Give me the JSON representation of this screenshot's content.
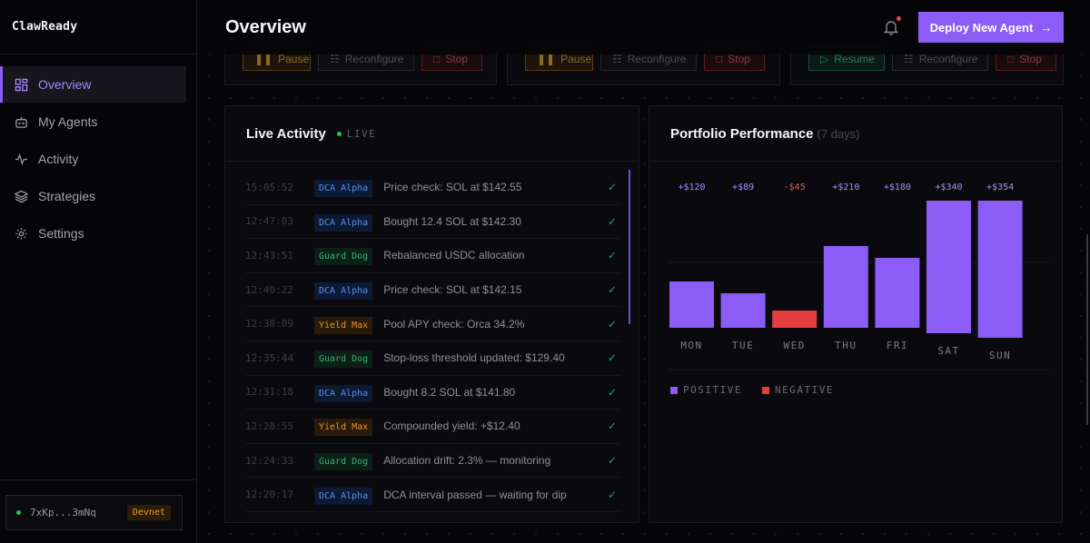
{
  "app": {
    "brand": "ClawReady"
  },
  "sidebar": {
    "items": [
      {
        "label": "Overview",
        "icon": "grid-icon",
        "active": true
      },
      {
        "label": "My Agents",
        "icon": "robot-icon",
        "active": false
      },
      {
        "label": "Activity",
        "icon": "pulse-icon",
        "active": false
      },
      {
        "label": "Strategies",
        "icon": "layers-icon",
        "active": false
      },
      {
        "label": "Settings",
        "icon": "gear-icon",
        "active": false
      }
    ],
    "wallet": {
      "address": "7xKp...3mNq",
      "network": "Devnet"
    }
  },
  "header": {
    "title": "Overview",
    "deploy_label": "Deploy New Agent",
    "deploy_arrow": "→"
  },
  "agent_cards": [
    {
      "buttons": [
        {
          "label": "Pause",
          "icon": "pause-icon"
        },
        {
          "label": "Reconfigure",
          "icon": "sliders-icon"
        },
        {
          "label": "Stop",
          "icon": "stop-icon"
        }
      ]
    },
    {
      "buttons": [
        {
          "label": "Pause",
          "icon": "pause-icon"
        },
        {
          "label": "Reconfigure",
          "icon": "sliders-icon"
        },
        {
          "label": "Stop",
          "icon": "stop-icon"
        }
      ]
    },
    {
      "buttons": [
        {
          "label": "Resume",
          "icon": "play-icon"
        },
        {
          "label": "Reconfigure",
          "icon": "sliders-icon"
        },
        {
          "label": "Stop",
          "icon": "stop-icon"
        }
      ]
    }
  ],
  "live_activity": {
    "title": "Live Activity",
    "live_label": "LIVE",
    "rows": [
      {
        "time": "15:05:52",
        "agent": "DCA Alpha",
        "kind": "dca",
        "message": "Price check: SOL at $142.55"
      },
      {
        "time": "12:47:03",
        "agent": "DCA Alpha",
        "kind": "dca",
        "message": "Bought 12.4 SOL at $142.30"
      },
      {
        "time": "12:43:51",
        "agent": "Guard Dog",
        "kind": "guard",
        "message": "Rebalanced USDC allocation"
      },
      {
        "time": "12:40:22",
        "agent": "DCA Alpha",
        "kind": "dca",
        "message": "Price check: SOL at $142.15"
      },
      {
        "time": "12:38:09",
        "agent": "Yield Max",
        "kind": "yield",
        "message": "Pool APY check: Orca 34.2%"
      },
      {
        "time": "12:35:44",
        "agent": "Guard Dog",
        "kind": "guard",
        "message": "Stop-loss threshold updated: $129.40"
      },
      {
        "time": "12:31:18",
        "agent": "DCA Alpha",
        "kind": "dca",
        "message": "Bought 8.2 SOL at $141.80"
      },
      {
        "time": "12:28:55",
        "agent": "Yield Max",
        "kind": "yield",
        "message": "Compounded yield: +$12.40"
      },
      {
        "time": "12:24:33",
        "agent": "Guard Dog",
        "kind": "guard",
        "message": "Allocation drift: 2.3% — monitoring"
      },
      {
        "time": "12:20:17",
        "agent": "DCA Alpha",
        "kind": "dca",
        "message": "DCA interval passed — waiting for dip"
      }
    ],
    "check_glyph": "✓"
  },
  "portfolio": {
    "title": "Portfolio Performance",
    "subtitle": "(7 days)"
  },
  "chart_data": {
    "type": "bar",
    "title": "Portfolio Performance (7 days)",
    "categories": [
      "MON",
      "TUE",
      "WED",
      "THU",
      "FRI",
      "SAT",
      "SUN"
    ],
    "values": [
      120,
      89,
      -45,
      210,
      180,
      340,
      354
    ],
    "labels": [
      "+$120",
      "+$89",
      "-$45",
      "+$210",
      "+$180",
      "+$340",
      "+$354"
    ],
    "legend": [
      {
        "label": "POSITIVE",
        "color": "#8b5cf6"
      },
      {
        "label": "NEGATIVE",
        "color": "#e53e3e"
      }
    ],
    "colors": {
      "positive": "#8b5cf6",
      "negative": "#e53e3e"
    }
  }
}
